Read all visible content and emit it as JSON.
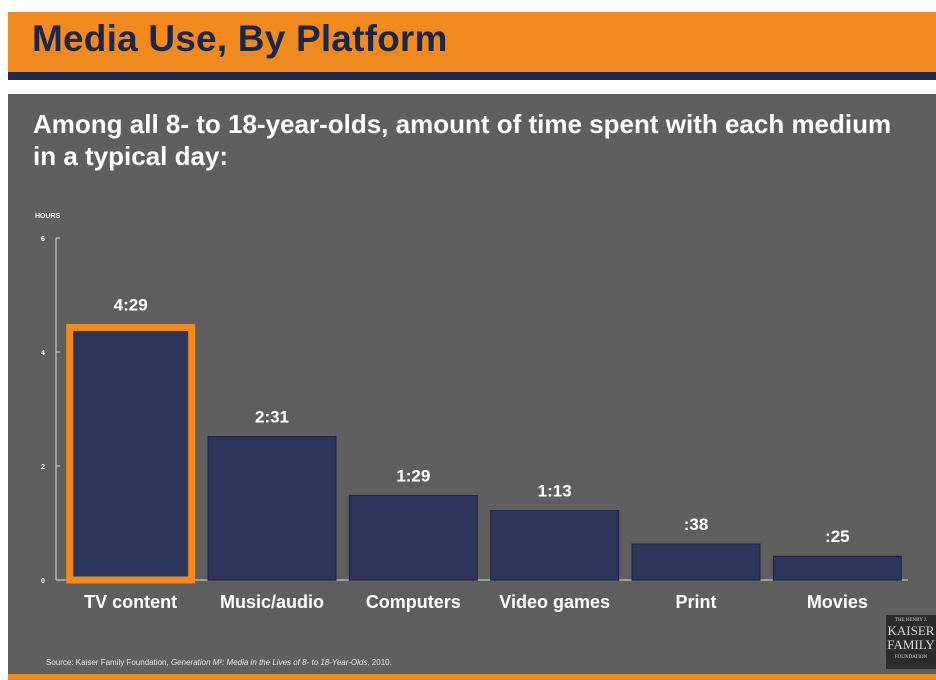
{
  "header": {
    "title": "Media Use, By Platform",
    "subtitle": "Among all 8- to 18-year-olds, amount of time spent with each medium in a typical day:"
  },
  "colors": {
    "accent": "#f08a1e",
    "bar": "#2c355c",
    "background": "#5f5f5f",
    "title_text": "#1b2748"
  },
  "chart_data": {
    "type": "bar",
    "categories": [
      "TV content",
      "Music/audio",
      "Computers",
      "Video games",
      "Print",
      "Movies"
    ],
    "values": [
      4.483,
      2.517,
      1.483,
      1.217,
      0.633,
      0.417
    ],
    "data_labels": [
      "4:29",
      "2:31",
      "1:29",
      "1:13",
      ":38",
      ":25"
    ],
    "highlighted": "TV content",
    "ylabel": "HOURS",
    "yticks": [
      0,
      2,
      4,
      6
    ],
    "ylim": [
      0,
      6
    ],
    "xlabel": "",
    "grid": false
  },
  "footer": {
    "source_prefix": "Source: Kaiser Family Foundation, ",
    "source_title": "Generation M²: Media in the Lives of 8- to 18-Year-Olds",
    "source_suffix": ", 2010.",
    "logo_small": "THE HENRY J.",
    "logo_line1": "KAISER",
    "logo_line2": "FAMILY",
    "logo_small2": "FOUNDATION"
  }
}
